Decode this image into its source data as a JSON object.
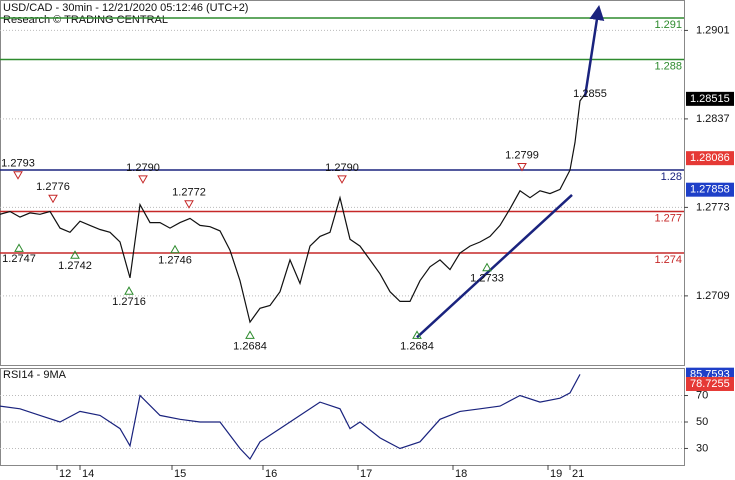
{
  "chart_data": [
    {
      "type": "line",
      "title": "USD/CAD - 30min - 12/21/2020 05:12:46 (UTC+2)",
      "subtitle": "Research © TRADING CENTRAL",
      "x": [
        0,
        1,
        2,
        3,
        4,
        5,
        6,
        7,
        8,
        9,
        10,
        11,
        12,
        13,
        14,
        15,
        16,
        17,
        18,
        19,
        20,
        21,
        22,
        23,
        24,
        25,
        26,
        27,
        28,
        29,
        30,
        31,
        32,
        33,
        34,
        35,
        36,
        37,
        38,
        39,
        40,
        41,
        42,
        43,
        44,
        45,
        46,
        47,
        48,
        49,
        50,
        51,
        52,
        53,
        54,
        55,
        56,
        57,
        57.5,
        58,
        58.5
      ],
      "values": [
        1.2768,
        1.277,
        1.2766,
        1.2769,
        1.2768,
        1.277,
        1.2758,
        1.2755,
        1.2763,
        1.276,
        1.2757,
        1.2755,
        1.2748,
        1.2722,
        1.2775,
        1.2762,
        1.2762,
        1.2758,
        1.2762,
        1.2765,
        1.276,
        1.2759,
        1.2756,
        1.2742,
        1.272,
        1.269,
        1.27,
        1.2702,
        1.2712,
        1.2735,
        1.2718,
        1.2745,
        1.2752,
        1.2755,
        1.278,
        1.275,
        1.2745,
        1.2735,
        1.2725,
        1.2712,
        1.2705,
        1.2705,
        1.272,
        1.273,
        1.2735,
        1.2728,
        1.274,
        1.2745,
        1.2748,
        1.2752,
        1.276,
        1.2772,
        1.2785,
        1.278,
        1.2785,
        1.2783,
        1.2786,
        1.28,
        1.282,
        1.285,
        1.2855
      ],
      "color": "#111111",
      "xlim": [
        0,
        68.4
      ],
      "ylim": [
        1.2659,
        1.2923
      ],
      "yticks": [
        1.2709,
        1.2773,
        1.2837,
        1.2901
      ],
      "grid": true,
      "levels": [
        {
          "value": 1.291,
          "label": "1.291",
          "color": "#2e8b2e"
        },
        {
          "value": 1.288,
          "label": "1.288",
          "color": "#2e8b2e"
        },
        {
          "value": 1.28,
          "label": "1.28",
          "color": "#1a237e"
        },
        {
          "value": 1.277,
          "label": "1.277",
          "color": "#c62828"
        },
        {
          "value": 1.274,
          "label": "1.274",
          "color": "#c62828"
        }
      ],
      "price_tags": [
        {
          "value": 1.28515,
          "color": "#000000"
        },
        {
          "value": 1.28086,
          "color": "#e53935"
        },
        {
          "value": 1.27858,
          "color": "#1e3fc8"
        }
      ],
      "annotations": [
        {
          "x": 1.8,
          "value": 1.2793,
          "marker": "down"
        },
        {
          "x": 5.3,
          "value": 1.2776,
          "marker": "down"
        },
        {
          "x": 14.3,
          "value": 1.279,
          "label": "1.2790",
          "marker": "down"
        },
        {
          "x": 18.9,
          "value": 1.2772,
          "marker": "down"
        },
        {
          "x": 34.2,
          "value": 1.279,
          "label": "1.2790",
          "marker": "down"
        },
        {
          "x": 52.2,
          "value": 1.2799,
          "marker": "down"
        },
        {
          "x": 59.0,
          "value": 1.2855,
          "marker": "none"
        },
        {
          "x": 1.9,
          "value": 1.2747,
          "marker": "up"
        },
        {
          "x": 7.5,
          "value": 1.2742,
          "marker": "up"
        },
        {
          "x": 12.9,
          "value": 1.2716,
          "marker": "up"
        },
        {
          "x": 17.5,
          "value": 1.2746,
          "marker": "up"
        },
        {
          "x": 25.0,
          "value": 1.2684,
          "marker": "up"
        },
        {
          "x": 41.7,
          "value": 1.2684,
          "marker": "up"
        },
        {
          "x": 48.7,
          "value": 1.2733,
          "marker": "up"
        }
      ],
      "trendlines": [
        {
          "x": [
            41.7,
            57.2
          ],
          "y": [
            1.2679,
            1.2782
          ],
          "color": "#1a237e"
        },
        {
          "x": [
            58.5,
            59.8
          ],
          "y": [
            1.2853,
            1.2914
          ],
          "color": "#1a237e",
          "arrow": true
        }
      ]
    },
    {
      "type": "line",
      "title": "RSI14 - 9MA",
      "x": [
        0,
        2,
        4,
        6,
        8,
        10,
        12,
        13,
        14,
        16,
        18,
        20,
        22,
        24,
        25,
        26,
        28,
        30,
        32,
        34,
        35,
        36,
        38,
        40,
        42,
        44,
        46,
        48,
        50,
        52,
        54,
        56,
        57,
        58
      ],
      "values": [
        62,
        60,
        55,
        50,
        58,
        55,
        45,
        32,
        70,
        55,
        52,
        50,
        50,
        30,
        22,
        35,
        45,
        55,
        65,
        60,
        45,
        50,
        38,
        30,
        35,
        52,
        58,
        60,
        62,
        70,
        65,
        68,
        72,
        86
      ],
      "color": "#1a237e",
      "xlim": [
        0,
        68.4
      ],
      "ylim": [
        17.5,
        90.8
      ],
      "yticks": [
        30,
        50,
        70
      ],
      "grid": true,
      "xticks": [
        {
          "value": 5.7,
          "label": "12"
        },
        {
          "value": 8.0,
          "label": "14"
        },
        {
          "value": 17.2,
          "label": "15"
        },
        {
          "value": 26.3,
          "label": "16"
        },
        {
          "value": 35.8,
          "label": "17"
        },
        {
          "value": 45.3,
          "label": "18"
        },
        {
          "value": 54.8,
          "label": "19"
        },
        {
          "value": 57.0,
          "label": "21"
        }
      ],
      "price_tags": [
        {
          "value": 85.7593,
          "color": "#1e3fc8"
        },
        {
          "value": 78.7255,
          "color": "#e53935"
        }
      ]
    }
  ]
}
